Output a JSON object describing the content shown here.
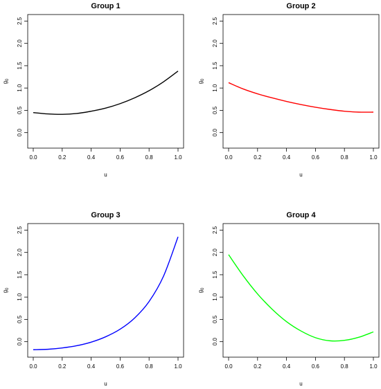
{
  "chart_data": [
    {
      "type": "line",
      "title": "Group 1",
      "xlabel": "u",
      "ylabel": "g",
      "ylabel_subscript": "0",
      "xlim": [
        0,
        1
      ],
      "ylim": [
        -0.3,
        2.6
      ],
      "xticks": [
        "0.0",
        "0.2",
        "0.4",
        "0.6",
        "0.8",
        "1.0"
      ],
      "yticks": [
        "0.0",
        "0.5",
        "1.0",
        "1.5",
        "2.0",
        "2.5"
      ],
      "color": "#000000",
      "series": [
        {
          "x": [
            0,
            0.1,
            0.2,
            0.3,
            0.4,
            0.5,
            0.6,
            0.7,
            0.8,
            0.9,
            1.0
          ],
          "y": [
            0.45,
            0.42,
            0.41,
            0.43,
            0.48,
            0.55,
            0.65,
            0.78,
            0.94,
            1.14,
            1.38
          ]
        }
      ]
    },
    {
      "type": "line",
      "title": "Group 2",
      "xlabel": "u",
      "ylabel": "g",
      "ylabel_subscript": "0",
      "xlim": [
        0,
        1
      ],
      "ylim": [
        -0.3,
        2.6
      ],
      "xticks": [
        "0.0",
        "0.2",
        "0.4",
        "0.6",
        "0.8",
        "1.0"
      ],
      "yticks": [
        "0.0",
        "0.5",
        "1.0",
        "1.5",
        "2.0",
        "2.5"
      ],
      "color": "#ff0000",
      "series": [
        {
          "x": [
            0,
            0.1,
            0.2,
            0.3,
            0.4,
            0.5,
            0.6,
            0.7,
            0.8,
            0.9,
            1.0
          ],
          "y": [
            1.12,
            0.98,
            0.87,
            0.78,
            0.7,
            0.63,
            0.57,
            0.52,
            0.48,
            0.46,
            0.46
          ]
        }
      ]
    },
    {
      "type": "line",
      "title": "Group 3",
      "xlabel": "u",
      "ylabel": "g",
      "ylabel_subscript": "0",
      "xlim": [
        0,
        1
      ],
      "ylim": [
        -0.3,
        2.6
      ],
      "xticks": [
        "0.0",
        "0.2",
        "0.4",
        "0.6",
        "0.8",
        "1.0"
      ],
      "yticks": [
        "0.0",
        "0.5",
        "1.0",
        "1.5",
        "2.0",
        "2.5"
      ],
      "color": "#0000ff",
      "series": [
        {
          "x": [
            0,
            0.1,
            0.2,
            0.3,
            0.4,
            0.5,
            0.6,
            0.7,
            0.8,
            0.9,
            1.0
          ],
          "y": [
            -0.18,
            -0.17,
            -0.14,
            -0.09,
            -0.01,
            0.11,
            0.28,
            0.53,
            0.9,
            1.47,
            2.35
          ]
        }
      ]
    },
    {
      "type": "line",
      "title": "Group 4",
      "xlabel": "u",
      "ylabel": "g",
      "ylabel_subscript": "0",
      "xlim": [
        0,
        1
      ],
      "ylim": [
        -0.3,
        2.6
      ],
      "xticks": [
        "0.0",
        "0.2",
        "0.4",
        "0.6",
        "0.8",
        "1.0"
      ],
      "yticks": [
        "0.0",
        "0.5",
        "1.0",
        "1.5",
        "2.0",
        "2.5"
      ],
      "color": "#00ff00",
      "series": [
        {
          "x": [
            0,
            0.1,
            0.2,
            0.3,
            0.4,
            0.5,
            0.6,
            0.7,
            0.8,
            0.9,
            1.0
          ],
          "y": [
            1.95,
            1.48,
            1.07,
            0.73,
            0.45,
            0.24,
            0.09,
            0.02,
            0.03,
            0.1,
            0.22
          ]
        }
      ]
    }
  ]
}
